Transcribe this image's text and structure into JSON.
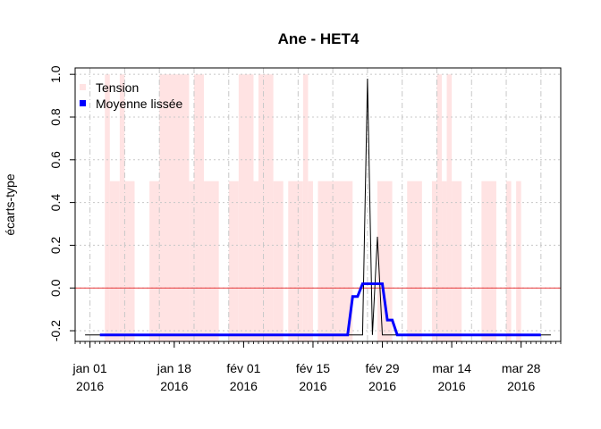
{
  "chart_data": {
    "type": "line",
    "title": "Ane - HET4",
    "xlabel": "",
    "ylabel": "écarts-type",
    "ylim": [
      -0.25,
      1.03
    ],
    "y_ticks": [
      -0.2,
      0.0,
      0.2,
      0.4,
      0.6,
      0.8,
      1.0
    ],
    "y_tick_labels": [
      "-0.2",
      "0.0",
      "0.2",
      "0.4",
      "0.6",
      "0.8",
      "1.0"
    ],
    "xlim": [
      "2015-12-29",
      "2016-04-05"
    ],
    "x_ticks": [
      {
        "date": "2016-01-01",
        "line1": "jan 01",
        "line2": "2016"
      },
      {
        "date": "2016-01-18",
        "line1": "jan 18",
        "line2": "2016"
      },
      {
        "date": "2016-02-01",
        "line1": "fév 01",
        "line2": "2016"
      },
      {
        "date": "2016-02-15",
        "line1": "fév 15",
        "line2": "2016"
      },
      {
        "date": "2016-02-29",
        "line1": "fév 29",
        "line2": "2016"
      },
      {
        "date": "2016-03-14",
        "line1": "mar 14",
        "line2": "2016"
      },
      {
        "date": "2016-03-28",
        "line1": "mar 28",
        "line2": "2016"
      }
    ],
    "grid": true,
    "legend_position": "top-left",
    "reference_line": {
      "y": 0.0,
      "color": "#e8393b"
    },
    "series": [
      {
        "name": "Tension",
        "kind": "bars",
        "color": "#ffe3e3",
        "bars": [
          {
            "start": "2016-01-04",
            "end": "2016-01-05",
            "value": 1.0
          },
          {
            "start": "2016-01-05",
            "end": "2016-01-07",
            "value": 0.5
          },
          {
            "start": "2016-01-07",
            "end": "2016-01-08",
            "value": 1.0
          },
          {
            "start": "2016-01-08",
            "end": "2016-01-10",
            "value": 0.5
          },
          {
            "start": "2016-01-13",
            "end": "2016-01-15",
            "value": 0.5
          },
          {
            "start": "2016-01-15",
            "end": "2016-01-21",
            "value": 1.0
          },
          {
            "start": "2016-01-21",
            "end": "2016-01-22",
            "value": 0.5
          },
          {
            "start": "2016-01-22",
            "end": "2016-01-24",
            "value": 1.0
          },
          {
            "start": "2016-01-24",
            "end": "2016-01-27",
            "value": 0.5
          },
          {
            "start": "2016-01-29",
            "end": "2016-01-31",
            "value": 0.5
          },
          {
            "start": "2016-01-31",
            "end": "2016-02-03",
            "value": 1.0
          },
          {
            "start": "2016-02-03",
            "end": "2016-02-04",
            "value": 0.5
          },
          {
            "start": "2016-02-04",
            "end": "2016-02-07",
            "value": 1.0
          },
          {
            "start": "2016-02-07",
            "end": "2016-02-09",
            "value": 0.5
          },
          {
            "start": "2016-02-10",
            "end": "2016-02-13",
            "value": 0.5
          },
          {
            "start": "2016-02-13",
            "end": "2016-02-14",
            "value": 1.0
          },
          {
            "start": "2016-02-14",
            "end": "2016-02-15",
            "value": 0.5
          },
          {
            "start": "2016-02-16",
            "end": "2016-02-23",
            "value": 0.5
          },
          {
            "start": "2016-02-28",
            "end": "2016-03-02",
            "value": 0.5
          },
          {
            "start": "2016-03-05",
            "end": "2016-03-08",
            "value": 0.5
          },
          {
            "start": "2016-03-10",
            "end": "2016-03-11",
            "value": 0.5
          },
          {
            "start": "2016-03-11",
            "end": "2016-03-12",
            "value": 1.0
          },
          {
            "start": "2016-03-12",
            "end": "2016-03-13",
            "value": 0.5
          },
          {
            "start": "2016-03-13",
            "end": "2016-03-14",
            "value": 1.0
          },
          {
            "start": "2016-03-14",
            "end": "2016-03-16",
            "value": 0.5
          },
          {
            "start": "2016-03-20",
            "end": "2016-03-23",
            "value": 0.5
          },
          {
            "start": "2016-03-25",
            "end": "2016-03-26",
            "value": 0.5
          },
          {
            "start": "2016-03-27",
            "end": "2016-03-28",
            "value": 0.5
          }
        ]
      },
      {
        "name": "",
        "kind": "line",
        "color": "#000000",
        "points": [
          [
            "2015-12-31",
            -0.22
          ],
          [
            "2016-02-24",
            -0.22
          ],
          [
            "2016-02-25",
            -0.22
          ],
          [
            "2016-02-26",
            0.98
          ],
          [
            "2016-02-27",
            -0.22
          ],
          [
            "2016-02-28",
            0.24
          ],
          [
            "2016-02-29",
            -0.22
          ],
          [
            "2016-04-03",
            -0.22
          ]
        ]
      },
      {
        "name": "Moyenne lissée",
        "kind": "line",
        "color": "#0000ff",
        "points": [
          [
            "2016-01-03",
            -0.22
          ],
          [
            "2016-02-22",
            -0.22
          ],
          [
            "2016-02-23",
            -0.04
          ],
          [
            "2016-02-24",
            -0.04
          ],
          [
            "2016-02-25",
            0.02
          ],
          [
            "2016-02-29",
            0.02
          ],
          [
            "2016-03-01",
            -0.15
          ],
          [
            "2016-03-02",
            -0.15
          ],
          [
            "2016-03-03",
            -0.22
          ],
          [
            "2016-04-01",
            -0.22
          ]
        ]
      }
    ]
  }
}
